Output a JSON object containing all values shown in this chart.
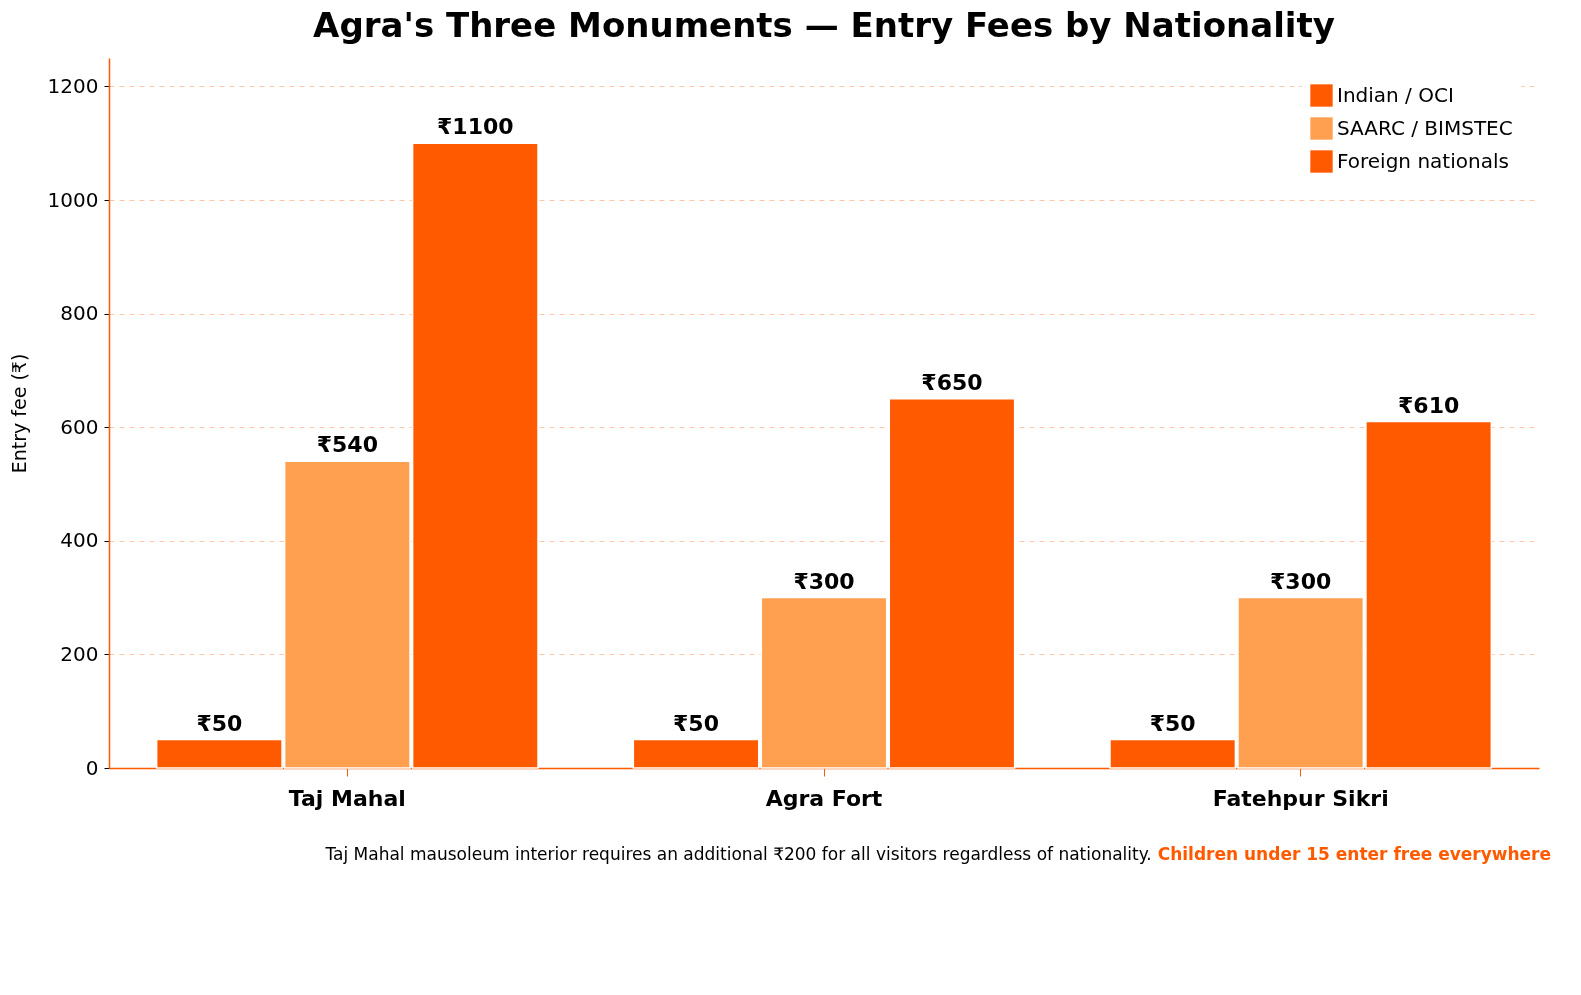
{
  "chart_data": {
    "type": "bar",
    "title": "Agra's Three Monuments — Entry Fees by Nationality",
    "ylabel": "Entry fee (₹)",
    "categories": [
      "Taj Mahal",
      "Agra Fort",
      "Fatehpur Sikri"
    ],
    "series": [
      {
        "name": "Indian / OCI",
        "color": "#ff5a00",
        "values": [
          50,
          50,
          50
        ],
        "value_labels": [
          "₹50",
          "₹50",
          "₹50"
        ]
      },
      {
        "name": "SAARC / BIMSTEC",
        "color": "#ffa050",
        "values": [
          540,
          300,
          300
        ],
        "value_labels": [
          "₹540",
          "₹300",
          "₹300"
        ]
      },
      {
        "name": "Foreign nationals",
        "color": "#ff5a00",
        "values": [
          1100,
          650,
          610
        ],
        "value_labels": [
          "₹1100",
          "₹650",
          "₹610"
        ]
      }
    ],
    "ylim": [
      0,
      1250
    ],
    "yticks": [
      0,
      200,
      400,
      600,
      800,
      1000,
      1200
    ],
    "grid": "y",
    "legend": "top right",
    "annotations": [
      "Taj Mahal mausoleum interior requires an additional ₹200 for all visitors regardless of nationality.",
      "Children under 15 enter free everywhere"
    ]
  }
}
